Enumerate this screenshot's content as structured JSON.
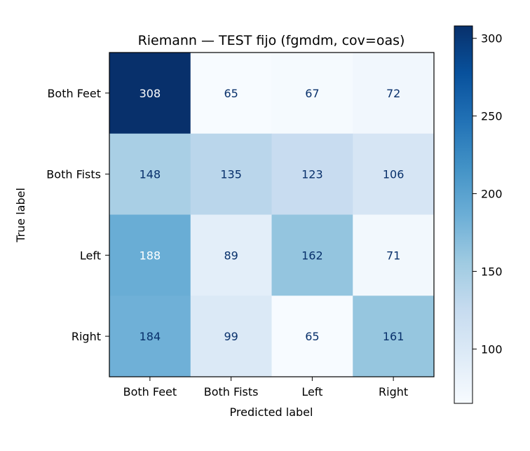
{
  "chart_data": {
    "type": "heatmap",
    "title": "Riemann — TEST fijo (fgmdm, cov=oas)",
    "xlabel": "Predicted label",
    "ylabel": "True label",
    "x_categories": [
      "Both Feet",
      "Both Fists",
      "Left",
      "Right"
    ],
    "y_categories": [
      "Both Feet",
      "Both Fists",
      "Left",
      "Right"
    ],
    "values": [
      [
        308,
        65,
        67,
        72
      ],
      [
        148,
        135,
        123,
        106
      ],
      [
        188,
        89,
        162,
        71
      ],
      [
        184,
        99,
        65,
        161
      ]
    ],
    "colormap": "Blues",
    "vmin": 65,
    "vmax": 308,
    "colorbar_ticks": [
      100,
      150,
      200,
      250,
      300
    ]
  }
}
